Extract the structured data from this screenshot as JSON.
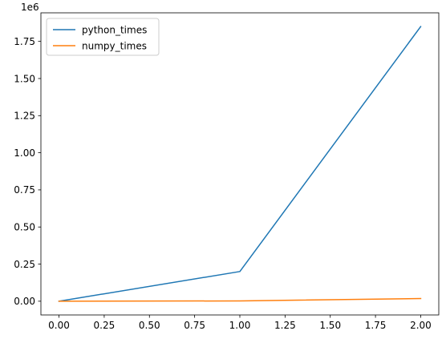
{
  "chart_data": {
    "type": "line",
    "title": "",
    "xlabel": "",
    "ylabel": "",
    "y_offset_label": "1e6",
    "x": [
      0,
      1,
      2
    ],
    "series": [
      {
        "name": "python_times",
        "color": "#1f77b4",
        "values": [
          0,
          200000,
          1850000
        ]
      },
      {
        "name": "numpy_times",
        "color": "#ff7f0e",
        "values": [
          0,
          2000,
          18000
        ]
      }
    ],
    "xlim": [
      -0.1,
      2.1
    ],
    "ylim": [
      -92500,
      1942500
    ],
    "xticks": [
      0,
      0.25,
      0.5,
      0.75,
      1.0,
      1.25,
      1.5,
      1.75,
      2.0
    ],
    "xtick_labels": [
      "0.00",
      "0.25",
      "0.50",
      "0.75",
      "1.00",
      "1.25",
      "1.50",
      "1.75",
      "2.00"
    ],
    "yticks": [
      0,
      250000,
      500000,
      750000,
      1000000,
      1250000,
      1500000,
      1750000
    ],
    "ytick_labels": [
      "0.00",
      "0.25",
      "0.50",
      "0.75",
      "1.00",
      "1.25",
      "1.50",
      "1.75"
    ],
    "grid": false,
    "legend_position": "upper-left"
  }
}
